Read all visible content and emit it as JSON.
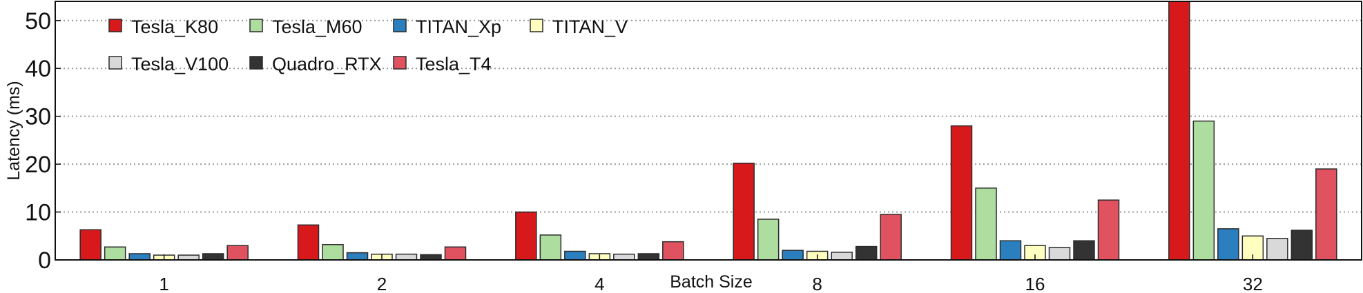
{
  "chart_data": {
    "type": "bar",
    "title": "",
    "xlabel": "Batch Size",
    "ylabel": "Latency (ms)",
    "ylim": [
      0,
      54
    ],
    "yticks": [
      "0",
      "10",
      "20",
      "30",
      "40",
      "50"
    ],
    "categories": [
      "1",
      "2",
      "4",
      "8",
      "16",
      "32"
    ],
    "grid": "horizontal dotted",
    "legend_position": "top-left",
    "series": [
      {
        "name": "Tesla_K80",
        "color": "#d7191c",
        "values": [
          6.3,
          7.3,
          10.0,
          20.2,
          28.0,
          54.0
        ]
      },
      {
        "name": "Tesla_M60",
        "color": "#addd9f",
        "values": [
          2.7,
          3.2,
          5.2,
          8.5,
          15.0,
          29.0
        ]
      },
      {
        "name": "TITAN_Xp",
        "color": "#2b7fbf",
        "values": [
          1.3,
          1.5,
          1.8,
          2.0,
          4.0,
          6.5
        ]
      },
      {
        "name": "TITAN_V",
        "color": "#ffffc0",
        "values": [
          1.0,
          1.2,
          1.3,
          1.8,
          3.0,
          5.0
        ]
      },
      {
        "name": "Tesla_V100",
        "color": "#d9d9d9",
        "values": [
          1.0,
          1.2,
          1.2,
          1.6,
          2.6,
          4.5
        ]
      },
      {
        "name": "Quadro_RTX",
        "color": "#333333",
        "values": [
          1.3,
          1.1,
          1.3,
          2.8,
          4.0,
          6.2
        ]
      },
      {
        "name": "Tesla_T4",
        "color": "#e05260",
        "values": [
          3.0,
          2.7,
          3.8,
          9.5,
          12.5,
          19.0
        ]
      }
    ]
  }
}
